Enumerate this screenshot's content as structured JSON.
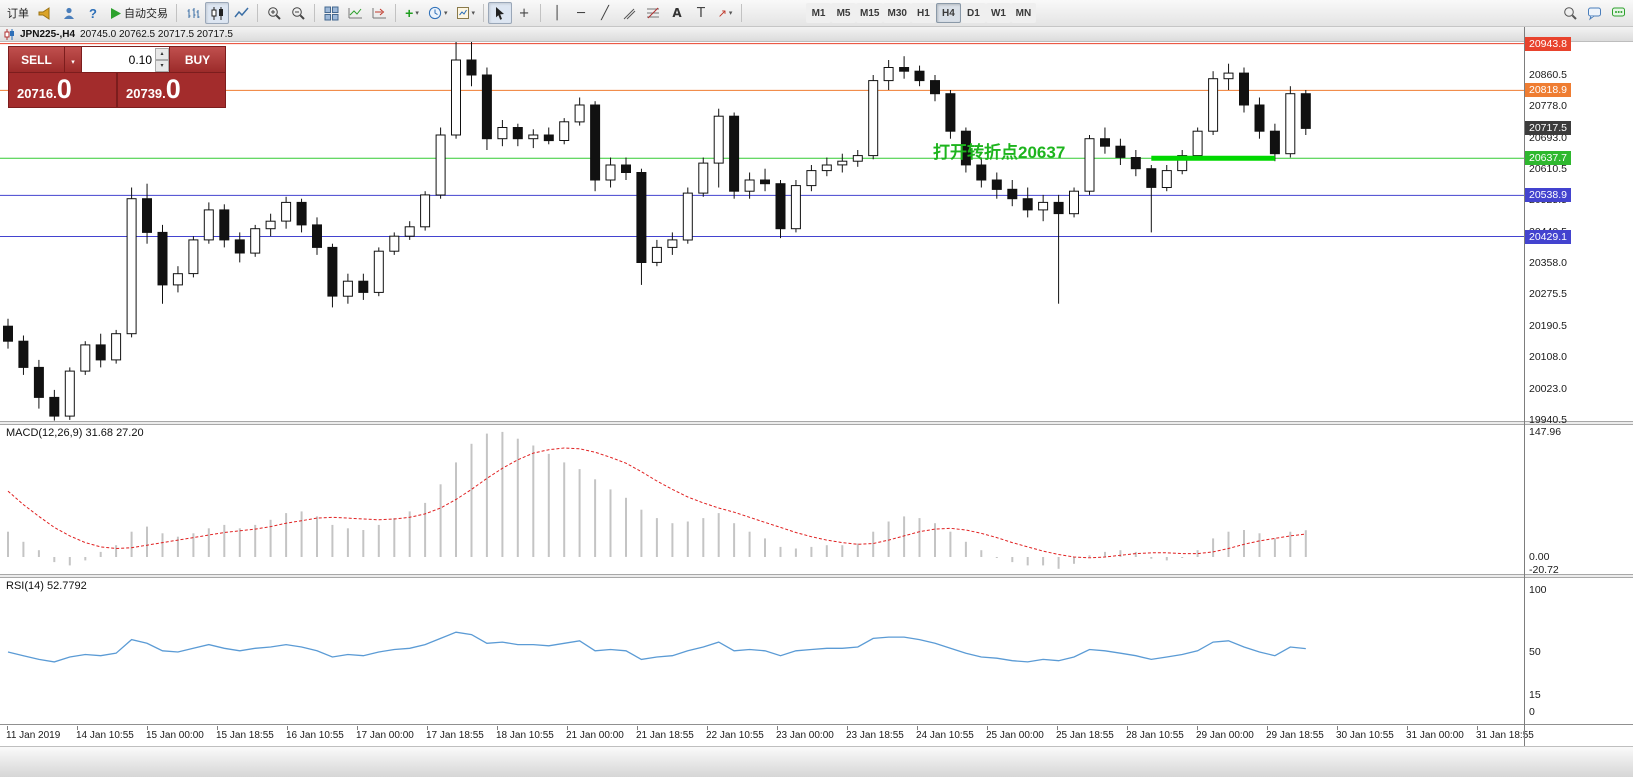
{
  "toolbar": {
    "new_order_label": "订单",
    "autotrading_label": "自动交易",
    "timeframes": [
      "M1",
      "M5",
      "M15",
      "M30",
      "H1",
      "H4",
      "D1",
      "W1",
      "MN"
    ],
    "active_timeframe": "H4"
  },
  "icons": {
    "caret": "▾",
    "help": "?",
    "crosshair": "+",
    "vline": "│",
    "hline": "─",
    "trend": "╱",
    "text": "A",
    "label": "T",
    "arrow": "↗",
    "up": "▴",
    "down": "▾",
    "plus": "+"
  },
  "chart_header": {
    "symbol_period": "JPN225-,H4",
    "ohlc": "20745.0 20762.5 20717.5 20717.5"
  },
  "trade_panel": {
    "sell_label": "SELL",
    "buy_label": "BUY",
    "lot": "0.10",
    "sell_price_main": "20716.",
    "sell_price_big": "0",
    "buy_price_main": "20739.",
    "buy_price_big": "0"
  },
  "annotation": {
    "text": "打开转折点20637",
    "color": "#1db41d"
  },
  "price_scale": {
    "ticks": [
      "20860.5",
      "20778.0",
      "20693.0",
      "20610.5",
      "20525.5",
      "20440.5",
      "20358.0",
      "20275.5",
      "20190.5",
      "20108.0",
      "20023.0",
      "19940.5"
    ],
    "line_labels": [
      {
        "text": "20943.8",
        "color": "#e8432d"
      },
      {
        "text": "20818.9",
        "color": "#ef7d32"
      },
      {
        "text": "20717.5",
        "color": "#3c3c3c"
      },
      {
        "text": "20637.7",
        "color": "#2eb82e"
      },
      {
        "text": "20538.9",
        "color": "#4343cf"
      },
      {
        "text": "20429.1",
        "color": "#4343cf"
      }
    ]
  },
  "chart_data": {
    "type": "candlestick",
    "symbol": "JPN225-",
    "timeframe": "H4",
    "current_bar_ohlc": {
      "open": 20745.0,
      "high": 20762.5,
      "low": 20717.5,
      "close": 20717.5
    },
    "ylim": [
      19937,
      20948
    ],
    "hlines": [
      {
        "price": 20943.8,
        "color": "#e8432d"
      },
      {
        "price": 20818.9,
        "color": "#ef7d32"
      },
      {
        "price": 20637.7,
        "color": "#33cc33"
      },
      {
        "price": 20538.9,
        "color": "#4343cf"
      },
      {
        "price": 20429.1,
        "color": "#4343cf"
      }
    ],
    "green_segment": {
      "price": 20637.7,
      "x_start_candle": 75,
      "x_end_candle": 83,
      "color": "#00d800"
    },
    "candles": [
      [
        20190,
        20210,
        20130,
        20150
      ],
      [
        20150,
        20165,
        20060,
        20080
      ],
      [
        20080,
        20100,
        19970,
        20000
      ],
      [
        20000,
        20020,
        19938,
        19950
      ],
      [
        19950,
        20080,
        19940,
        20070
      ],
      [
        20070,
        20150,
        20060,
        20140
      ],
      [
        20140,
        20170,
        20080,
        20100
      ],
      [
        20100,
        20180,
        20090,
        20170
      ],
      [
        20170,
        20560,
        20160,
        20530
      ],
      [
        20530,
        20570,
        20410,
        20440
      ],
      [
        20440,
        20460,
        20250,
        20300
      ],
      [
        20300,
        20350,
        20280,
        20330
      ],
      [
        20330,
        20430,
        20320,
        20420
      ],
      [
        20420,
        20520,
        20410,
        20500
      ],
      [
        20500,
        20515,
        20400,
        20420
      ],
      [
        20420,
        20440,
        20360,
        20385
      ],
      [
        20385,
        20460,
        20375,
        20450
      ],
      [
        20450,
        20490,
        20430,
        20470
      ],
      [
        20470,
        20535,
        20450,
        20520
      ],
      [
        20520,
        20530,
        20440,
        20460
      ],
      [
        20460,
        20480,
        20380,
        20400
      ],
      [
        20400,
        20410,
        20240,
        20270
      ],
      [
        20270,
        20330,
        20250,
        20310
      ],
      [
        20310,
        20330,
        20260,
        20280
      ],
      [
        20280,
        20400,
        20270,
        20390
      ],
      [
        20390,
        20440,
        20380,
        20430
      ],
      [
        20430,
        20470,
        20420,
        20455
      ],
      [
        20455,
        20550,
        20445,
        20540
      ],
      [
        20540,
        20720,
        20530,
        20700
      ],
      [
        20700,
        20950,
        20690,
        20900
      ],
      [
        20900,
        20955,
        20830,
        20860
      ],
      [
        20860,
        20880,
        20660,
        20690
      ],
      [
        20690,
        20740,
        20670,
        20720
      ],
      [
        20720,
        20730,
        20670,
        20690
      ],
      [
        20690,
        20715,
        20665,
        20700
      ],
      [
        20700,
        20720,
        20675,
        20685
      ],
      [
        20685,
        20745,
        20675,
        20735
      ],
      [
        20735,
        20800,
        20725,
        20780
      ],
      [
        20780,
        20790,
        20550,
        20580
      ],
      [
        20580,
        20640,
        20560,
        20620
      ],
      [
        20620,
        20640,
        20580,
        20600
      ],
      [
        20600,
        20610,
        20300,
        20360
      ],
      [
        20360,
        20420,
        20350,
        20400
      ],
      [
        20400,
        20440,
        20380,
        20420
      ],
      [
        20420,
        20560,
        20410,
        20545
      ],
      [
        20545,
        20640,
        20535,
        20625
      ],
      [
        20625,
        20770,
        20560,
        20750
      ],
      [
        20750,
        20760,
        20530,
        20550
      ],
      [
        20550,
        20600,
        20530,
        20580
      ],
      [
        20580,
        20610,
        20550,
        20570
      ],
      [
        20570,
        20580,
        20425,
        20450
      ],
      [
        20450,
        20580,
        20440,
        20565
      ],
      [
        20565,
        20620,
        20550,
        20605
      ],
      [
        20605,
        20640,
        20590,
        20620
      ],
      [
        20620,
        20650,
        20600,
        20630
      ],
      [
        20630,
        20660,
        20615,
        20645
      ],
      [
        20645,
        20860,
        20635,
        20845
      ],
      [
        20845,
        20900,
        20820,
        20880
      ],
      [
        20880,
        20910,
        20850,
        20870
      ],
      [
        20870,
        20885,
        20830,
        20845
      ],
      [
        20845,
        20860,
        20790,
        20810
      ],
      [
        20810,
        20820,
        20690,
        20710
      ],
      [
        20710,
        20720,
        20600,
        20620
      ],
      [
        20620,
        20640,
        20560,
        20580
      ],
      [
        20580,
        20600,
        20530,
        20555
      ],
      [
        20555,
        20580,
        20510,
        20530
      ],
      [
        20530,
        20560,
        20480,
        20500
      ],
      [
        20500,
        20540,
        20470,
        20520
      ],
      [
        20520,
        20540,
        20250,
        20490
      ],
      [
        20490,
        20560,
        20480,
        20550
      ],
      [
        20550,
        20700,
        20540,
        20690
      ],
      [
        20690,
        20720,
        20650,
        20670
      ],
      [
        20670,
        20690,
        20620,
        20640
      ],
      [
        20640,
        20660,
        20590,
        20610
      ],
      [
        20610,
        20620,
        20440,
        20560
      ],
      [
        20560,
        20620,
        20550,
        20605
      ],
      [
        20605,
        20660,
        20595,
        20645
      ],
      [
        20645,
        20720,
        20635,
        20710
      ],
      [
        20710,
        20870,
        20700,
        20850
      ],
      [
        20850,
        20890,
        20820,
        20865
      ],
      [
        20865,
        20880,
        20760,
        20780
      ],
      [
        20780,
        20800,
        20690,
        20710
      ],
      [
        20710,
        20730,
        20630,
        20650
      ],
      [
        20650,
        20830,
        20640,
        20810
      ],
      [
        20810,
        20820,
        20700,
        20717.5
      ]
    ],
    "indicators": {
      "macd": {
        "name": "MACD(12,26,9)",
        "values_label": "31.68 27.20",
        "scale": [
          "147.96",
          "0.00",
          "-20.72"
        ],
        "range": [
          -20.72,
          147.96
        ],
        "histogram": [
          30,
          18,
          8,
          -6,
          -10,
          -4,
          6,
          14,
          30,
          36,
          28,
          24,
          28,
          34,
          38,
          34,
          38,
          44,
          52,
          54,
          48,
          38,
          34,
          32,
          38,
          46,
          54,
          64,
          86,
          112,
          134,
          146,
          148,
          140,
          132,
          122,
          112,
          104,
          92,
          80,
          70,
          56,
          46,
          40,
          42,
          46,
          52,
          40,
          30,
          22,
          12,
          10,
          12,
          14,
          14,
          16,
          30,
          42,
          48,
          46,
          40,
          30,
          18,
          8,
          0,
          -6,
          -10,
          -10,
          -14,
          -8,
          2,
          6,
          8,
          6,
          -2,
          -4,
          0,
          8,
          22,
          30,
          32,
          28,
          22,
          30,
          31.68
        ],
        "signal": [
          78,
          62,
          48,
          35,
          25,
          17,
          12,
          10,
          11,
          14,
          17,
          20,
          23,
          26,
          29,
          31,
          33,
          36,
          40,
          43,
          46,
          47,
          46,
          45,
          44,
          45,
          47,
          51,
          58,
          68,
          80,
          93,
          105,
          115,
          123,
          127,
          129,
          128,
          124,
          118,
          111,
          101,
          90,
          80,
          71,
          64,
          58,
          53,
          47,
          41,
          35,
          29,
          24,
          20,
          17,
          15,
          16,
          20,
          25,
          30,
          33,
          34,
          32,
          28,
          23,
          17,
          12,
          7,
          3,
          0,
          -1,
          0,
          2,
          4,
          5,
          5,
          4,
          4,
          6,
          10,
          15,
          19,
          22,
          25,
          27.2
        ]
      },
      "rsi": {
        "name": "RSI(14)",
        "value_label": "52.7792",
        "scale": [
          "100",
          "50",
          "15",
          "0"
        ],
        "range": [
          0,
          100
        ],
        "values": [
          50,
          47,
          44,
          42,
          46,
          48,
          47,
          49,
          60,
          57,
          51,
          50,
          53,
          56,
          53,
          51,
          53,
          54,
          56,
          54,
          51,
          46,
          48,
          47,
          50,
          52,
          53,
          56,
          61,
          66,
          64,
          57,
          58,
          56,
          56,
          55,
          57,
          59,
          51,
          52,
          51,
          44,
          46,
          47,
          51,
          54,
          58,
          51,
          52,
          51,
          47,
          51,
          52,
          53,
          53,
          54,
          61,
          62,
          62,
          60,
          57,
          53,
          49,
          46,
          45,
          43,
          42,
          44,
          43,
          46,
          52,
          51,
          49,
          47,
          44,
          46,
          48,
          51,
          58,
          59,
          54,
          50,
          47,
          54,
          52.78
        ]
      }
    },
    "time_labels": [
      "11 Jan 2019",
      "14 Jan 10:55",
      "15 Jan 00:00",
      "15 Jan 18:55",
      "16 Jan 10:55",
      "17 Jan 00:00",
      "17 Jan 18:55",
      "18 Jan 10:55",
      "21 Jan 00:00",
      "21 Jan 18:55",
      "22 Jan 10:55",
      "23 Jan 00:00",
      "23 Jan 18:55",
      "24 Jan 10:55",
      "25 Jan 00:00",
      "25 Jan 18:55",
      "28 Jan 10:55",
      "29 Jan 00:00",
      "29 Jan 18:55",
      "30 Jan 10:55",
      "31 Jan 00:00",
      "31 Jan 18:55"
    ]
  }
}
